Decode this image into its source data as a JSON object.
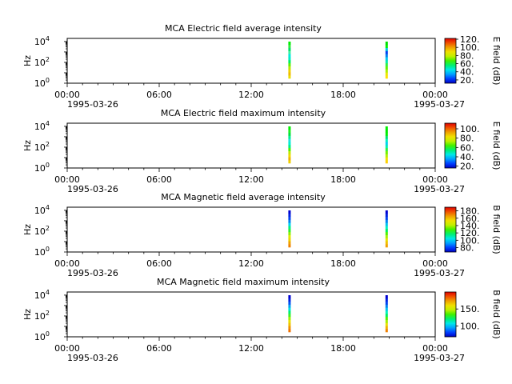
{
  "chart_data": [
    {
      "type": "heatmap",
      "title": "MCA  Electric field average intensity",
      "ylabel": "Hz",
      "ylim": [
        1,
        10000
      ],
      "y_scale": "log",
      "y_ticks": [
        "10",
        "10",
        "10"
      ],
      "y_tick_exponents": [
        "0",
        "2",
        "4"
      ],
      "x_ticks": [
        "00:00",
        "06:00",
        "12:00",
        "18:00",
        "00:00"
      ],
      "x_dates": [
        "1995-03-26",
        "1995-03-27"
      ],
      "colorbar": {
        "label": "E field (dB)",
        "ticks": [
          "20.",
          "40.",
          "60.",
          "80.",
          "100.",
          "120."
        ],
        "range": [
          12,
          122
        ]
      },
      "passes": [
        {
          "time": "14:30",
          "colors": [
            "#e8e000",
            "#f0b800",
            "#f0d000",
            "#b8e800",
            "#60f000",
            "#00f060",
            "#00f0c0",
            "#00e8e0",
            "#40f0a0",
            "#00e060",
            "#30e840",
            "#00f000"
          ]
        },
        {
          "time": "20:50",
          "colors": [
            "#ffe000",
            "#e8e800",
            "#a8f000",
            "#60f000",
            "#30f040",
            "#00e8b0",
            "#00c8f0",
            "#0080f0",
            "#0040f0",
            "#00c8e0",
            "#00f000",
            "#00e000"
          ]
        }
      ]
    },
    {
      "type": "heatmap",
      "title": "MCA  Electric field maximum intensity",
      "ylabel": "Hz",
      "ylim": [
        1,
        10000
      ],
      "y_scale": "log",
      "y_ticks": [
        "10",
        "10",
        "10"
      ],
      "y_tick_exponents": [
        "0",
        "2",
        "4"
      ],
      "x_ticks": [
        "00:00",
        "06:00",
        "12:00",
        "18:00",
        "00:00"
      ],
      "x_dates": [
        "1995-03-26",
        "1995-03-27"
      ],
      "colorbar": {
        "label": "E field (dB)",
        "ticks": [
          "20.",
          "40.",
          "60.",
          "80.",
          "100."
        ],
        "range": [
          16,
          112
        ]
      },
      "passes": [
        {
          "time": "14:30",
          "colors": [
            "#f0d000",
            "#f0b000",
            "#f0d800",
            "#c0e800",
            "#50f000",
            "#00f080",
            "#00f0d0",
            "#20e0e0",
            "#00f090",
            "#00e040",
            "#20f020",
            "#00f000"
          ]
        },
        {
          "time": "20:50",
          "colors": [
            "#ffd000",
            "#f0e000",
            "#b0f000",
            "#70f000",
            "#30f040",
            "#00f0b0",
            "#00d0f0",
            "#00f0c0",
            "#00e070",
            "#00f000",
            "#00e800",
            "#00f000"
          ]
        }
      ]
    },
    {
      "type": "heatmap",
      "title": "MCA  Magnetic field average intensity",
      "ylabel": "Hz",
      "ylim": [
        1,
        10000
      ],
      "y_scale": "log",
      "y_ticks": [
        "10",
        "10",
        "10"
      ],
      "y_tick_exponents": [
        "0",
        "2",
        "4"
      ],
      "x_ticks": [
        "00:00",
        "06:00",
        "12:00",
        "18:00",
        "00:00"
      ],
      "x_dates": [
        "1995-03-26",
        "1995-03-27"
      ],
      "colorbar": {
        "label": "B field (dB)",
        "ticks": [
          "80.",
          "100.",
          "120.",
          "140.",
          "160.",
          "180."
        ],
        "range": [
          68,
          190
        ]
      },
      "passes": [
        {
          "time": "14:30",
          "colors": [
            "#f08000",
            "#f0a000",
            "#f0d000",
            "#e0e800",
            "#90f000",
            "#30f030",
            "#00f080",
            "#00d0f0",
            "#0080f0",
            "#0040f0",
            "#0020e0",
            "#0000d0"
          ]
        },
        {
          "time": "20:50",
          "colors": [
            "#f0a000",
            "#f0c000",
            "#e8e000",
            "#a0f000",
            "#50f000",
            "#00f060",
            "#00f0c0",
            "#00c0f0",
            "#0080f0",
            "#0040f0",
            "#0020e0",
            "#0000d0"
          ]
        }
      ]
    },
    {
      "type": "heatmap",
      "title": "MCA  Magnetic field maximum intensity",
      "ylabel": "Hz",
      "ylim": [
        1,
        10000
      ],
      "y_scale": "log",
      "y_ticks": [
        "10",
        "10",
        "10"
      ],
      "y_tick_exponents": [
        "0",
        "2",
        "4"
      ],
      "x_ticks": [
        "00:00",
        "06:00",
        "12:00",
        "18:00",
        "00:00"
      ],
      "x_dates": [
        "1995-03-26",
        "1995-03-27"
      ],
      "colorbar": {
        "label": "B field (dB)",
        "ticks": [
          "100.",
          "150."
        ],
        "range": [
          68,
          200
        ]
      },
      "passes": [
        {
          "time": "14:30",
          "colors": [
            "#f07000",
            "#f09000",
            "#f0c000",
            "#e8e000",
            "#a0f000",
            "#40f020",
            "#00f070",
            "#00e0e0",
            "#00a0f0",
            "#0050f0",
            "#0020e0",
            "#0000d0"
          ]
        },
        {
          "time": "20:50",
          "colors": [
            "#f08000",
            "#f0b000",
            "#e8e000",
            "#a0f000",
            "#50f000",
            "#00f060",
            "#00f0c0",
            "#00c0f0",
            "#0080f0",
            "#0040f0",
            "#0020e0",
            "#0000d0"
          ]
        }
      ]
    }
  ]
}
